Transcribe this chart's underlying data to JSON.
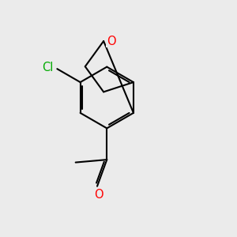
{
  "background_color": "#ebebeb",
  "bond_color": "#000000",
  "bond_width": 1.5,
  "atom_colors": {
    "O": "#ff0000",
    "Cl": "#00aa00",
    "C": "#000000"
  },
  "font_size_atom": 10.5
}
